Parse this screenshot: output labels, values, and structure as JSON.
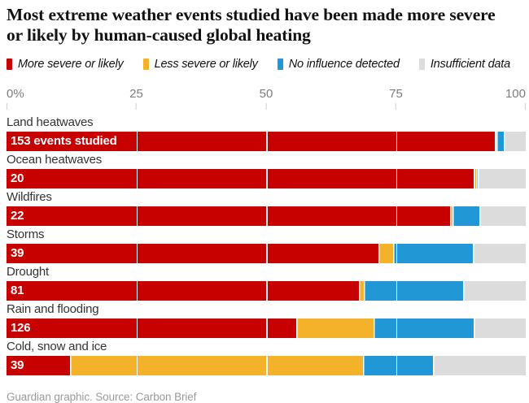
{
  "title": "Most extreme weather events studied have been made more severe or likely by human-caused global heating",
  "chart_data": {
    "type": "bar",
    "orientation": "horizontal-stacked",
    "title": "Most extreme weather events studied have been made more severe or likely by human-caused global heating",
    "categories": [
      "Land heatwaves",
      "Ocean heatwaves",
      "Wildfires",
      "Storms",
      "Drought",
      "Rain and flooding",
      "Cold, snow and ice"
    ],
    "count_labels": [
      "153 events studied",
      "20",
      "22",
      "39",
      "81",
      "126",
      "39"
    ],
    "counts": [
      153,
      20,
      22,
      39,
      81,
      126,
      39
    ],
    "series": [
      {
        "name": "More severe or likely",
        "color": "#c70000",
        "values": [
          94.0,
          90.0,
          85.5,
          71.6,
          67.8,
          55.8,
          12.2
        ]
      },
      {
        "name": "Less severe or likely",
        "color": "#f3b229",
        "values": [
          0.4,
          0.4,
          0.4,
          2.8,
          1.0,
          14.9,
          56.4
        ]
      },
      {
        "name": "No influence detected",
        "color": "#2198d5",
        "values": [
          1.4,
          0.4,
          5.2,
          15.4,
          19.1,
          19.2,
          13.5
        ]
      },
      {
        "name": "Insufficient data",
        "color": "#dcdcdc",
        "values": [
          4.2,
          9.2,
          8.9,
          10.2,
          12.1,
          10.1,
          17.9
        ]
      }
    ],
    "x_axis": {
      "range": [
        0,
        100
      ],
      "ticks": [
        {
          "label": "0%",
          "value": 0
        },
        {
          "label": "25",
          "value": 25
        },
        {
          "label": "50",
          "value": 50
        },
        {
          "label": "75",
          "value": 75
        },
        {
          "label": "100",
          "value": 100
        }
      ],
      "gridlines": [
        25,
        50,
        75
      ]
    },
    "legend_position": "top"
  },
  "footer": {
    "credit": "Guardian graphic. Source: Carbon Brief"
  }
}
